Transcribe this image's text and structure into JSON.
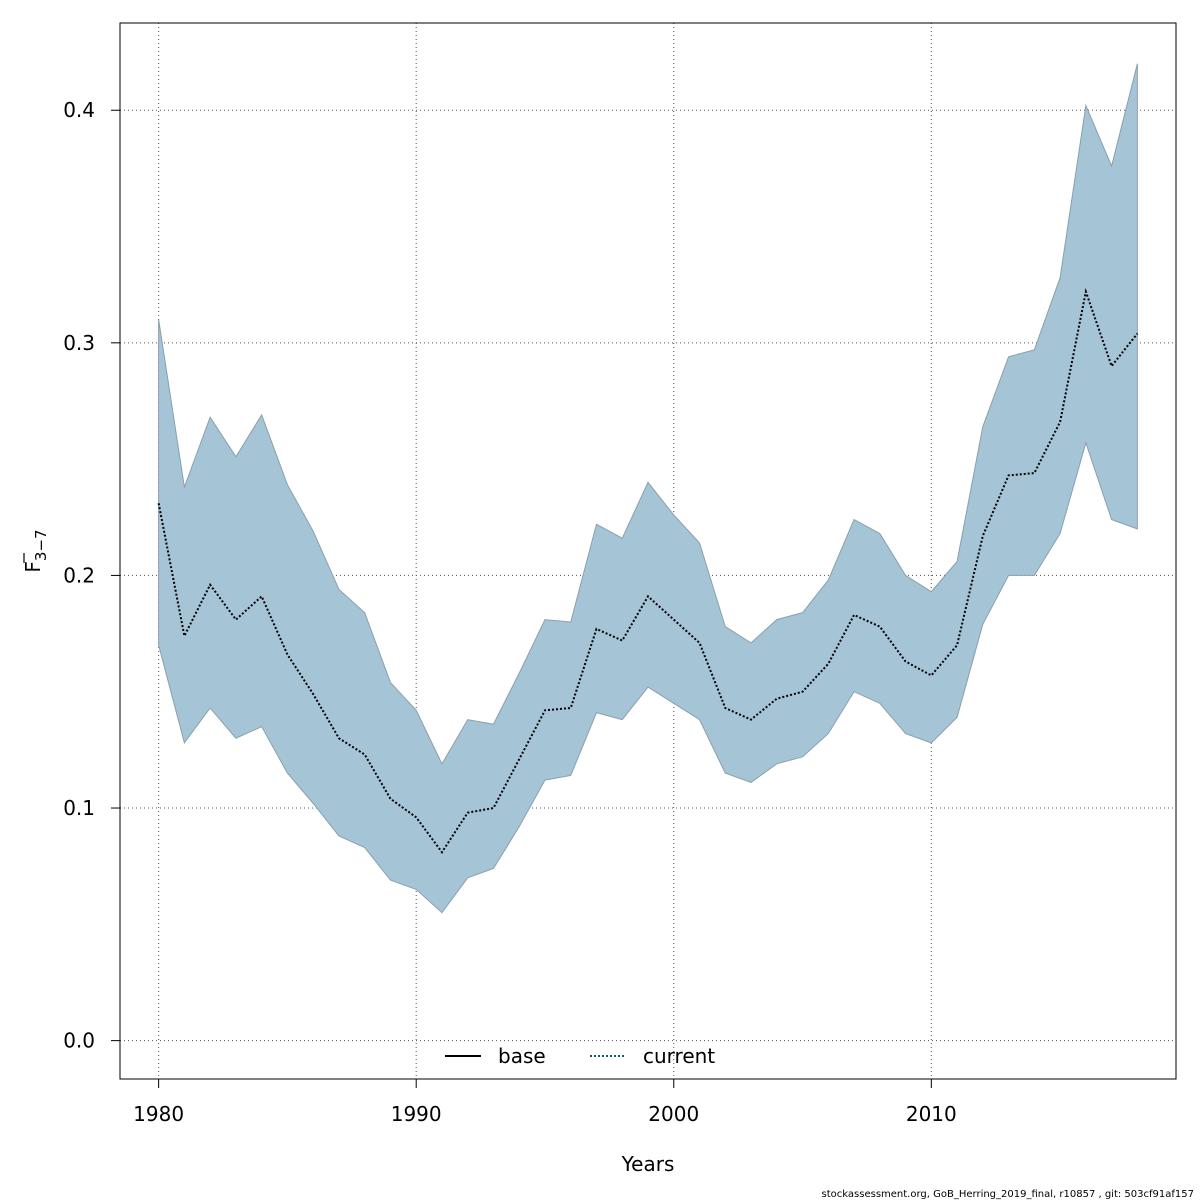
{
  "chart_data": {
    "type": "line",
    "title": "",
    "xlabel": "Years",
    "ylabel": "F3-7",
    "ylabel_parts": {
      "main": "F",
      "sub": "3−7"
    },
    "xlim": [
      1978.5,
      2019.5
    ],
    "ylim": [
      -0.0165,
      0.4375
    ],
    "x_ticks": [
      1980,
      1990,
      2000,
      2010
    ],
    "x_tick_labels": [
      "1980",
      "1990",
      "2000",
      "2010"
    ],
    "y_ticks": [
      0.0,
      0.1,
      0.2,
      0.3,
      0.4
    ],
    "y_tick_labels": [
      "0.0",
      "0.1",
      "0.2",
      "0.3",
      "0.4"
    ],
    "grid": true,
    "x": [
      1980,
      1981,
      1982,
      1983,
      1984,
      1985,
      1986,
      1987,
      1988,
      1989,
      1990,
      1991,
      1992,
      1993,
      1994,
      1995,
      1996,
      1997,
      1998,
      1999,
      2000,
      2001,
      2002,
      2003,
      2004,
      2005,
      2006,
      2007,
      2008,
      2009,
      2010,
      2011,
      2012,
      2013,
      2014,
      2015,
      2016,
      2017,
      2018
    ],
    "series": [
      {
        "name": "current",
        "style": "dotted",
        "color": "#0a5a8a",
        "values": [
          0.231,
          0.174,
          0.196,
          0.181,
          0.191,
          0.166,
          0.149,
          0.13,
          0.123,
          0.104,
          0.096,
          0.081,
          0.098,
          0.1,
          0.121,
          0.142,
          0.143,
          0.177,
          0.172,
          0.191,
          0.181,
          0.171,
          0.143,
          0.138,
          0.147,
          0.15,
          0.162,
          0.183,
          0.178,
          0.163,
          0.157,
          0.17,
          0.217,
          0.243,
          0.244,
          0.266,
          0.322,
          0.29,
          0.304
        ]
      }
    ],
    "band": {
      "color": "#a5c4d6",
      "lower": [
        0.17,
        0.128,
        0.143,
        0.13,
        0.135,
        0.115,
        0.102,
        0.088,
        0.083,
        0.069,
        0.065,
        0.055,
        0.07,
        0.074,
        0.092,
        0.112,
        0.114,
        0.141,
        0.138,
        0.152,
        0.145,
        0.138,
        0.115,
        0.111,
        0.119,
        0.122,
        0.132,
        0.15,
        0.145,
        0.132,
        0.128,
        0.139,
        0.179,
        0.2,
        0.2,
        0.218,
        0.257,
        0.224,
        0.22
      ],
      "upper": [
        0.31,
        0.238,
        0.268,
        0.251,
        0.269,
        0.239,
        0.219,
        0.194,
        0.184,
        0.154,
        0.142,
        0.119,
        0.138,
        0.136,
        0.158,
        0.181,
        0.18,
        0.222,
        0.216,
        0.24,
        0.226,
        0.214,
        0.178,
        0.171,
        0.181,
        0.184,
        0.198,
        0.224,
        0.218,
        0.2,
        0.193,
        0.206,
        0.264,
        0.294,
        0.297,
        0.328,
        0.402,
        0.376,
        0.42
      ]
    },
    "legend": {
      "placement": "bottom-center",
      "entries": [
        {
          "label": "base",
          "style": "solid",
          "color": "#000000"
        },
        {
          "label": "current",
          "style": "dotted",
          "color": "#0a5a8a"
        }
      ]
    },
    "footnote": "stockassessment.org, GoB_Herring_2019_final, r10857 , git: 503cf91af157"
  }
}
